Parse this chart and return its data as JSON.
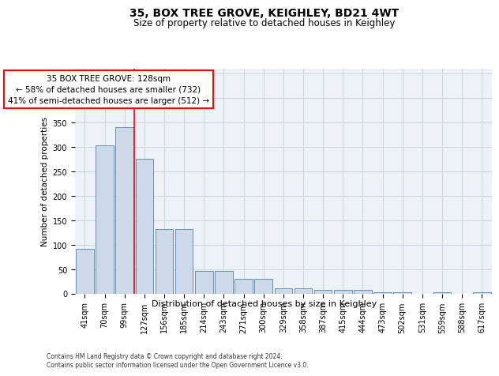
{
  "title": "35, BOX TREE GROVE, KEIGHLEY, BD21 4WT",
  "subtitle": "Size of property relative to detached houses in Keighley",
  "xlabel": "Distribution of detached houses by size in Keighley",
  "ylabel": "Number of detached properties",
  "categories": [
    "41sqm",
    "70sqm",
    "99sqm",
    "127sqm",
    "156sqm",
    "185sqm",
    "214sqm",
    "243sqm",
    "271sqm",
    "300sqm",
    "329sqm",
    "358sqm",
    "387sqm",
    "415sqm",
    "444sqm",
    "473sqm",
    "502sqm",
    "531sqm",
    "559sqm",
    "588sqm",
    "617sqm"
  ],
  "values": [
    92,
    302,
    340,
    276,
    131,
    131,
    46,
    46,
    30,
    30,
    10,
    10,
    8,
    8,
    7,
    3,
    3,
    0,
    3,
    0,
    3
  ],
  "bar_color": "#ccd9e8",
  "bar_edge_color": "#5580aa",
  "grid_color": "#c8d4e0",
  "vline_index": 2.5,
  "annotation_box_text": "35 BOX TREE GROVE: 128sqm\n← 58% of detached houses are smaller (732)\n41% of semi-detached houses are larger (512) →",
  "annotation_box_color": "white",
  "annotation_box_edge_color": "red",
  "vline_color": "red",
  "ylim": [
    0,
    460
  ],
  "yticks": [
    0,
    50,
    100,
    150,
    200,
    250,
    300,
    350,
    400,
    450
  ],
  "footer_text": "Contains HM Land Registry data © Crown copyright and database right 2024.\nContains public sector information licensed under the Open Government Licence v3.0.",
  "bg_color": "#edf2f7",
  "fig_bg_color": "#ffffff",
  "title_fontsize": 10,
  "subtitle_fontsize": 8.5,
  "tick_fontsize": 7,
  "ylabel_fontsize": 7.5,
  "xlabel_fontsize": 8,
  "annotation_fontsize": 7.5,
  "footer_fontsize": 5.5
}
